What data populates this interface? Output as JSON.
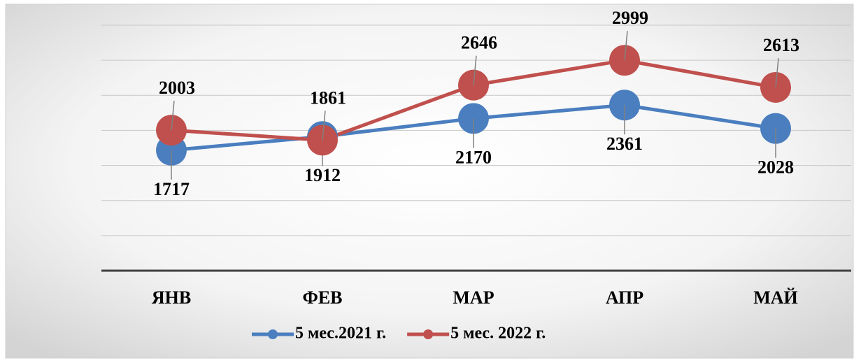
{
  "chart_data": {
    "type": "line",
    "categories": [
      "ЯНВ",
      "ФЕВ",
      "МАР",
      "АПР",
      "МАЙ"
    ],
    "series": [
      {
        "name": "5 мес.2021 г.",
        "color": "#4a7ebf",
        "values": [
          1717,
          1912,
          2170,
          2361,
          2028
        ]
      },
      {
        "name": "5 мес. 2022 г.",
        "color": "#c0504d",
        "values": [
          2003,
          1861,
          2646,
          2999,
          2613
        ]
      }
    ],
    "ylim": [
      0,
      3500
    ],
    "yticks": [
      0,
      500,
      1000,
      1500,
      2000,
      2500,
      3000,
      3500
    ],
    "grid": true,
    "legend": "bottom"
  }
}
